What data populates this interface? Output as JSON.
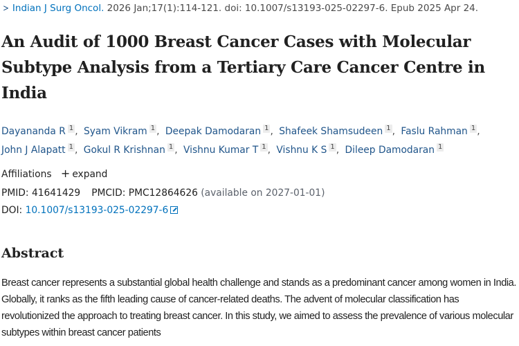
{
  "citation": {
    "journal": "Indian J Surg Oncol.",
    "details": " 2026 Jan;17(1):114-121. doi: 10.1007/s13193-025-02297-6. Epub 2025 Apr 24."
  },
  "article": {
    "title": "An Audit of 1000 Breast Cancer Cases with Molecular Subtype Analysis from a Tertiary Care Cancer Centre in India"
  },
  "authors": [
    {
      "name": "Dayananda R",
      "affiliation": "1"
    },
    {
      "name": "Syam Vikram",
      "affiliation": "1"
    },
    {
      "name": "Deepak Damodaran",
      "affiliation": "1"
    },
    {
      "name": "Shafeek Shamsudeen",
      "affiliation": "1"
    },
    {
      "name": "Faslu Rahman",
      "affiliation": "1"
    },
    {
      "name": "John J Alapatt",
      "affiliation": "1"
    },
    {
      "name": "Gokul R Krishnan",
      "affiliation": "1"
    },
    {
      "name": "Vishnu Kumar T",
      "affiliation": "1"
    },
    {
      "name": "Vishnu K S",
      "affiliation": "1"
    },
    {
      "name": "Dileep Damodaran",
      "affiliation": "1"
    }
  ],
  "affiliations": {
    "label": "Affiliations",
    "expand_label": "expand",
    "expand_icon": "plus-icon"
  },
  "identifiers": {
    "pmid_label": "PMID:",
    "pmid": "41641429",
    "pmcid_label": "PMCID:",
    "pmcid": "PMC12864626",
    "pmcid_note": "(available on 2027-01-01)",
    "doi_label": "DOI:",
    "doi": "10.1007/s13193-025-02297-6",
    "doi_icon": "external-link-icon"
  },
  "abstract": {
    "heading": "Abstract",
    "text": "Breast cancer represents a substantial global health challenge and stands as a predominant cancer among women in India. Globally, it ranks as the fifth leading cause of cancer-related deaths. The advent of molecular classification has revolutionized the approach to treating breast cancer. In this study, we aimed to assess the prevalence of various molecular subtypes within breast cancer patients"
  },
  "colors": {
    "link": "#0071bc",
    "author_link": "#20558a",
    "text": "#212121",
    "muted": "#5b616b"
  }
}
